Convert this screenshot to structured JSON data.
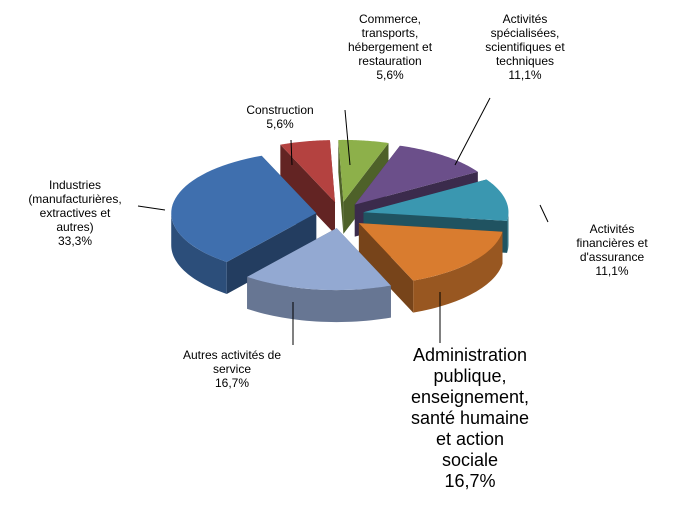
{
  "chart_data": {
    "type": "pie3d",
    "categories": [
      "Commerce,\ntransports,\nhébergement et\nrestauration",
      "Activités\nspécialisées,\nscientifiques et\ntechniques",
      "Activités\nfinancières et\nd'assurance",
      "Administration\npublique,\nenseignement,\nsanté humaine\net action\nsociale",
      "Autres activités de\nservice",
      "Industries\n(manufacturières,\nextractives et\nautres)",
      "Construction"
    ],
    "values": [
      5.6,
      11.1,
      11.1,
      16.7,
      16.7,
      33.3,
      5.6
    ],
    "value_labels": [
      "5,6%",
      "11,1%",
      "11,1%",
      "16,7%",
      "16,7%",
      "33,3%",
      "5,6%"
    ],
    "colors": [
      "#8db04a",
      "#6b4f8a",
      "#3a97b0",
      "#d97c2f",
      "#93a9d2",
      "#3f6fae",
      "#b44240"
    ]
  }
}
